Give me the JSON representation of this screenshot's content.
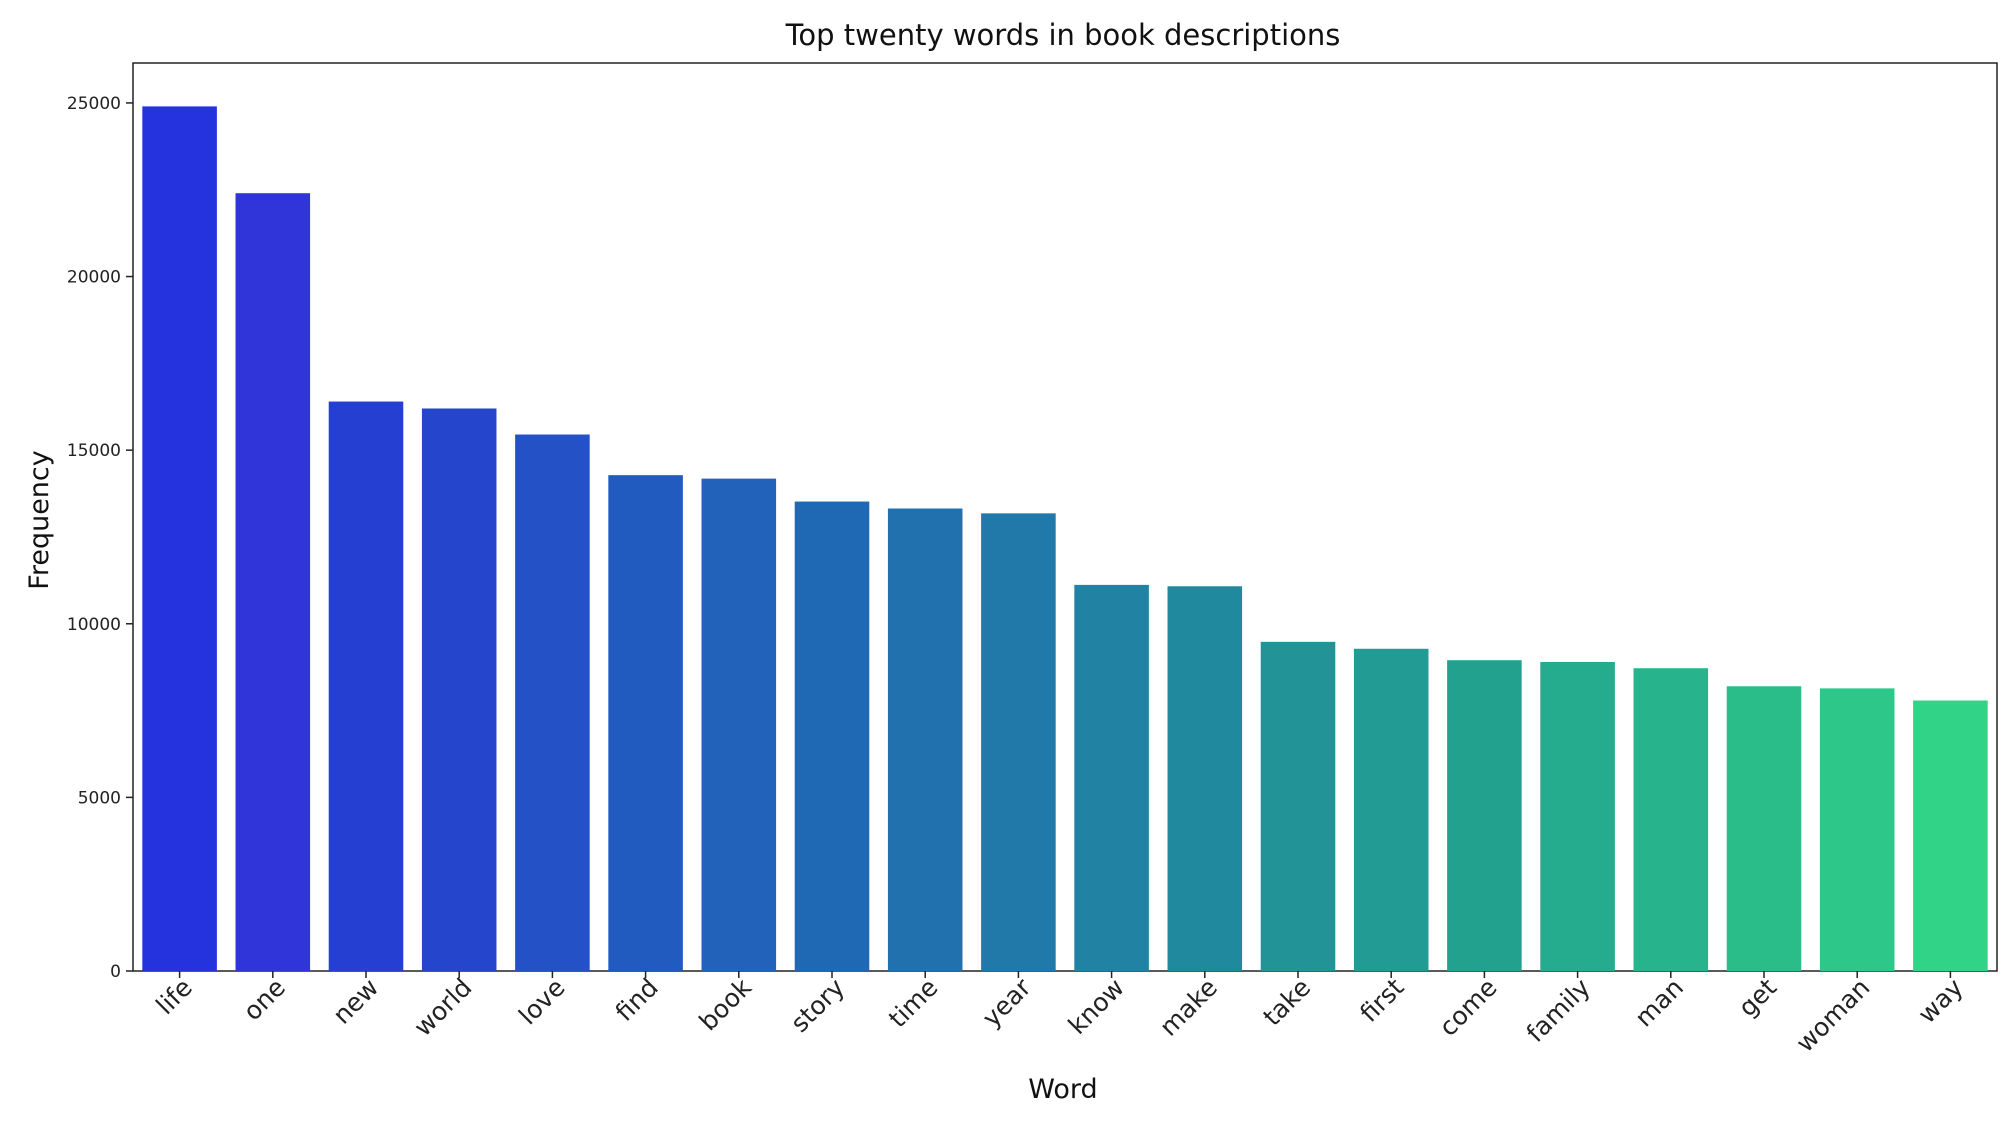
{
  "chart_data": {
    "type": "bar",
    "title": "Top twenty words in book descriptions",
    "xlabel": "Word",
    "ylabel": "Frequency",
    "categories": [
      "life",
      "one",
      "new",
      "world",
      "love",
      "find",
      "book",
      "story",
      "time",
      "year",
      "know",
      "make",
      "take",
      "first",
      "come",
      "family",
      "man",
      "get",
      "woman",
      "way"
    ],
    "values": [
      24900,
      22400,
      16400,
      16200,
      15450,
      14280,
      14180,
      13520,
      13320,
      13180,
      11120,
      11080,
      9480,
      9280,
      8950,
      8900,
      8720,
      8200,
      8140,
      7790
    ],
    "yticks": [
      0,
      5000,
      10000,
      15000,
      20000,
      25000
    ],
    "ylim": [
      0,
      26150
    ],
    "grid": false,
    "legend": "none",
    "palette": [
      "#2433dd",
      "#2f35d8",
      "#253fd3",
      "#2545cd",
      "#2451c6",
      "#225bbf",
      "#2262ba",
      "#1f69b4",
      "#2071ae",
      "#2079a8",
      "#2182a3",
      "#20899d",
      "#229498",
      "#219b93",
      "#22a18e",
      "#25ab8d",
      "#27b48c",
      "#2abd8a",
      "#2dc78a",
      "#31d487"
    ]
  }
}
